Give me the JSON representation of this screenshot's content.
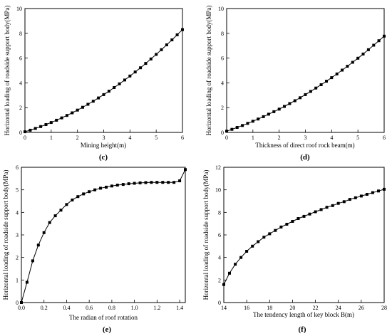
{
  "chart_data": [
    {
      "type": "line",
      "panel_label": "(c)",
      "xlabel": "Mining height(m)",
      "ylabel": "Horizontal loading of roadside support body(MPa)",
      "xlim": [
        0,
        6
      ],
      "ylim": [
        0,
        10
      ],
      "xticks": [
        "0",
        "1",
        "2",
        "3",
        "4",
        "5",
        "6"
      ],
      "yticks": [
        "0",
        "2",
        "4",
        "6",
        "8",
        "10"
      ],
      "series": [
        {
          "x": [
            0.0,
            0.2,
            0.4,
            0.6,
            0.8,
            1.0,
            1.2,
            1.4,
            1.6,
            1.8,
            2.0,
            2.2,
            2.4,
            2.6,
            2.8,
            3.0,
            3.2,
            3.4,
            3.6,
            3.8,
            4.0,
            4.2,
            4.4,
            4.6,
            4.8,
            5.0,
            5.2,
            5.4,
            5.6,
            5.8,
            6.0
          ],
          "y": [
            0.05,
            0.18,
            0.32,
            0.47,
            0.63,
            0.8,
            0.98,
            1.17,
            1.37,
            1.58,
            1.8,
            2.03,
            2.27,
            2.52,
            2.78,
            3.05,
            3.33,
            3.62,
            3.92,
            4.23,
            4.55,
            4.88,
            5.22,
            5.57,
            5.93,
            6.3,
            6.68,
            7.07,
            7.47,
            7.88,
            8.3
          ]
        }
      ]
    },
    {
      "type": "line",
      "panel_label": "(d)",
      "xlabel": "Thickness of direct roof rock beam(m)",
      "ylabel": "Horizontal loading of roadside support body(MPa)",
      "xlim": [
        0,
        6
      ],
      "ylim": [
        0,
        10
      ],
      "xticks": [
        "0",
        "1",
        "2",
        "3",
        "4",
        "5",
        "6"
      ],
      "yticks": [
        "0",
        "2",
        "4",
        "6",
        "8",
        "10"
      ],
      "series": [
        {
          "x": [
            0.0,
            0.2,
            0.4,
            0.6,
            0.8,
            1.0,
            1.2,
            1.4,
            1.6,
            1.8,
            2.0,
            2.2,
            2.4,
            2.6,
            2.8,
            3.0,
            3.2,
            3.4,
            3.6,
            3.8,
            4.0,
            4.2,
            4.4,
            4.6,
            4.8,
            5.0,
            5.2,
            5.4,
            5.6,
            5.8,
            6.0
          ],
          "y": [
            0.1,
            0.25,
            0.4,
            0.56,
            0.73,
            0.9,
            1.08,
            1.27,
            1.47,
            1.67,
            1.88,
            2.1,
            2.33,
            2.56,
            2.8,
            3.05,
            3.31,
            3.58,
            3.85,
            4.13,
            4.42,
            4.72,
            5.03,
            5.34,
            5.66,
            5.99,
            6.33,
            6.68,
            7.04,
            7.4,
            7.77
          ]
        }
      ]
    },
    {
      "type": "line",
      "panel_label": "(e)",
      "xlabel": "The radian of roof rotation",
      "ylabel": "Horizontal loading of roadside support body(MPa)",
      "xlim": [
        0,
        1.45
      ],
      "ylim": [
        0,
        6
      ],
      "xticks": [
        "0.0",
        "0.2",
        "0.4",
        "0.6",
        "0.8",
        "1.0",
        "1.2",
        "1.4"
      ],
      "yticks": [
        "0",
        "1",
        "2",
        "3",
        "4",
        "5",
        "6"
      ],
      "series": [
        {
          "x": [
            0.0,
            0.05,
            0.1,
            0.15,
            0.2,
            0.25,
            0.3,
            0.35,
            0.4,
            0.45,
            0.5,
            0.55,
            0.6,
            0.65,
            0.7,
            0.75,
            0.8,
            0.85,
            0.9,
            0.95,
            1.0,
            1.05,
            1.1,
            1.15,
            1.2,
            1.25,
            1.3,
            1.35,
            1.4,
            1.45
          ],
          "y": [
            0.0,
            0.9,
            1.85,
            2.55,
            3.1,
            3.55,
            3.85,
            4.1,
            4.35,
            4.55,
            4.7,
            4.82,
            4.92,
            5.0,
            5.07,
            5.12,
            5.17,
            5.21,
            5.24,
            5.27,
            5.29,
            5.31,
            5.32,
            5.33,
            5.33,
            5.33,
            5.33,
            5.33,
            5.4,
            5.9
          ]
        }
      ]
    },
    {
      "type": "line",
      "panel_label": "(f)",
      "xlabel": "The tendency length of key block B(m)",
      "ylabel": "Horizontal loading of roadside support body(MPa)",
      "xlim": [
        14,
        28
      ],
      "ylim": [
        0,
        12
      ],
      "xticks": [
        "14",
        "16",
        "18",
        "20",
        "22",
        "24",
        "26",
        "28"
      ],
      "yticks": [
        "0",
        "2",
        "4",
        "6",
        "8",
        "10",
        "12"
      ],
      "series": [
        {
          "x": [
            14.0,
            14.5,
            15.0,
            15.5,
            16.0,
            16.5,
            17.0,
            17.5,
            18.0,
            18.5,
            19.0,
            19.5,
            20.0,
            20.5,
            21.0,
            21.5,
            22.0,
            22.5,
            23.0,
            23.5,
            24.0,
            24.5,
            25.0,
            25.5,
            26.0,
            26.5,
            27.0,
            27.5,
            28.0
          ],
          "y": [
            1.6,
            2.6,
            3.4,
            4.0,
            4.55,
            5.0,
            5.4,
            5.8,
            6.1,
            6.4,
            6.7,
            6.95,
            7.2,
            7.45,
            7.65,
            7.85,
            8.05,
            8.25,
            8.45,
            8.6,
            8.8,
            8.95,
            9.15,
            9.3,
            9.45,
            9.6,
            9.75,
            9.9,
            10.05
          ]
        }
      ]
    }
  ]
}
